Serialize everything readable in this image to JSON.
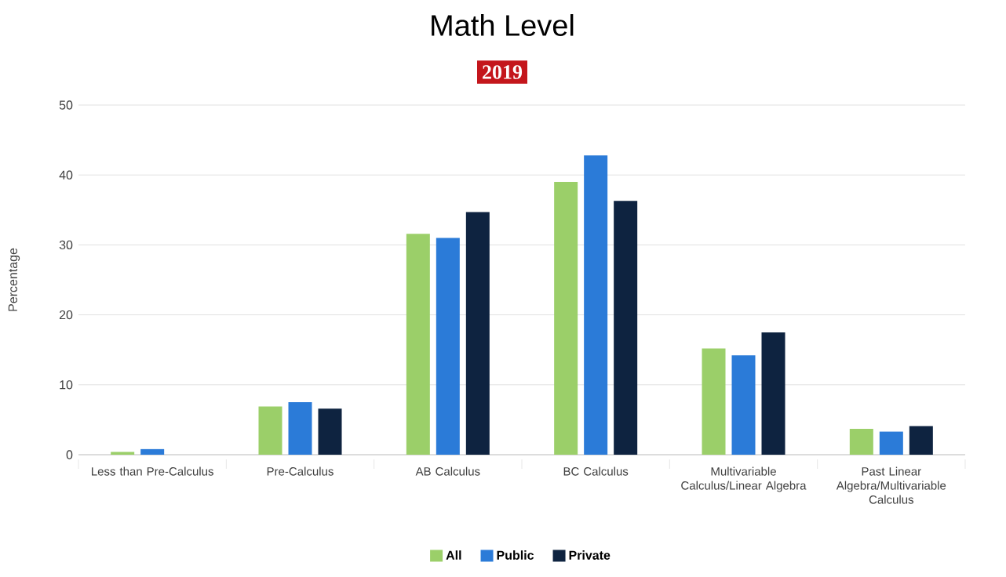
{
  "chart_data": {
    "type": "bar",
    "title": "Math Level",
    "subtitle": "2019",
    "ylabel": "Percentage",
    "categories": [
      "Less than Pre-Calculus",
      "Pre-Calculus",
      "AB Calculus",
      "BC Calculus",
      "Multivariable Calculus/Linear Algebra",
      "Past Linear Algebra/Multivariable Calculus"
    ],
    "series": [
      {
        "name": "All",
        "color": "#9bcf69",
        "values": [
          0.4,
          6.9,
          31.6,
          39.0,
          15.2,
          3.7
        ]
      },
      {
        "name": "Public",
        "color": "#2b7bd8",
        "values": [
          0.8,
          7.5,
          31.0,
          42.8,
          14.2,
          3.3
        ]
      },
      {
        "name": "Private",
        "color": "#0e2340",
        "values": [
          0,
          6.6,
          34.7,
          36.3,
          17.5,
          4.1
        ]
      }
    ],
    "ylim": [
      0,
      50
    ],
    "yticks": [
      0,
      10,
      20,
      30,
      40,
      50
    ],
    "grid": "y",
    "legend": "bottom"
  }
}
